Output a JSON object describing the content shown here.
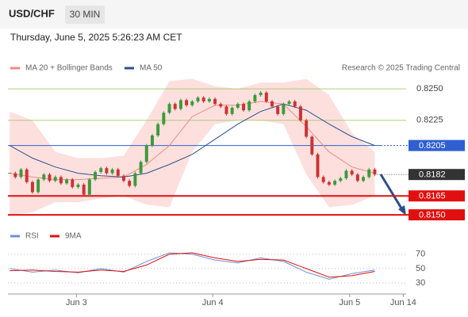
{
  "header": {
    "symbol": "USD/CHF",
    "interval": "30 MIN",
    "timestamp": "Thursday, June 5, 2025 5:26:23 AM CET"
  },
  "chart_data": [
    {
      "type": "candlestick",
      "source": "Research © 2025 Trading Central",
      "up_color": "#3c9a3c",
      "down_color": "#cc3333",
      "closes": [
        0.8183,
        0.818,
        0.8186,
        0.8176,
        0.8168,
        0.8178,
        0.8182,
        0.8177,
        0.818,
        0.8175,
        0.8178,
        0.8172,
        0.8174,
        0.8166,
        0.8178,
        0.8184,
        0.8187,
        0.8183,
        0.8186,
        0.8181,
        0.8177,
        0.8173,
        0.8183,
        0.8192,
        0.8205,
        0.8213,
        0.8222,
        0.8231,
        0.8238,
        0.8234,
        0.8241,
        0.8237,
        0.824,
        0.8243,
        0.824,
        0.8242,
        0.8238,
        0.8236,
        0.823,
        0.8235,
        0.8238,
        0.8233,
        0.824,
        0.8245,
        0.8247,
        0.824,
        0.8236,
        0.823,
        0.8238,
        0.824,
        0.8236,
        0.8225,
        0.8212,
        0.8198,
        0.818,
        0.8176,
        0.8174,
        0.8177,
        0.8179,
        0.8185,
        0.8182,
        0.8177,
        0.818,
        0.8186,
        0.8182
      ],
      "x": [
        0,
        4,
        8,
        12,
        16,
        20,
        24,
        28,
        32,
        36,
        40,
        44,
        48,
        52,
        56,
        60,
        64
      ],
      "series": [
        {
          "name": "MA 20 + Bollinger Bands",
          "color": "#f08a80",
          "band_color": "#fde0de",
          "values": [
            0.8183,
            0.818,
            0.8178,
            0.8178,
            0.8179,
            0.818,
            0.819,
            0.8205,
            0.8228,
            0.8237,
            0.8237,
            0.824,
            0.8238,
            0.822,
            0.82,
            0.8188,
            0.8183
          ],
          "upper": [
            0.8232,
            0.8225,
            0.82,
            0.8195,
            0.8195,
            0.8197,
            0.8225,
            0.8256,
            0.8258,
            0.8252,
            0.825,
            0.8255,
            0.8255,
            0.8258,
            0.8245,
            0.8215,
            0.82
          ],
          "lower": [
            0.815,
            0.8152,
            0.816,
            0.816,
            0.8163,
            0.8165,
            0.8158,
            0.8156,
            0.82,
            0.8222,
            0.8225,
            0.8225,
            0.8222,
            0.8182,
            0.8156,
            0.8158,
            0.8165
          ]
        },
        {
          "name": "MA 50",
          "color": "#2c4f8c",
          "values": [
            0.8205,
            0.8195,
            0.8188,
            0.8183,
            0.8181,
            0.818,
            0.8183,
            0.819,
            0.8198,
            0.821,
            0.8222,
            0.8232,
            0.8238,
            0.8233,
            0.8222,
            0.8212,
            0.8205
          ]
        }
      ],
      "levels": [
        {
          "value": 0.825,
          "label": "0.8250",
          "color": "#8dc04a",
          "weight": "light",
          "box": false
        },
        {
          "value": 0.8225,
          "color": "#8dc04a",
          "weight": "light",
          "box": false
        },
        {
          "value": 0.8205,
          "color": "#2f5fd0",
          "weight": "normal",
          "box": true
        },
        {
          "value": 0.8165,
          "color": "#e01010",
          "weight": "bold",
          "box": true
        },
        {
          "value": 0.815,
          "label": "0.8150",
          "color": "#e01010",
          "weight": "bold",
          "box": true
        }
      ],
      "last_color": "#333333",
      "xlim": [
        -0.3,
        69.5
      ],
      "ylim": [
        0.8142,
        0.8262
      ]
    },
    {
      "type": "line",
      "x": [
        0,
        4,
        8,
        12,
        16,
        20,
        24,
        28,
        32,
        36,
        40,
        44,
        48,
        52,
        56,
        60,
        64
      ],
      "series": [
        {
          "name": "RSI",
          "color": "#6b8fd6",
          "values": [
            50,
            45,
            48,
            44,
            50,
            45,
            60,
            72,
            70,
            62,
            58,
            65,
            60,
            45,
            35,
            43,
            48
          ]
        },
        {
          "name": "9MA",
          "color": "#e01010",
          "values": [
            47,
            48,
            46,
            45,
            48,
            46,
            55,
            70,
            72,
            65,
            60,
            63,
            62,
            50,
            38,
            40,
            46
          ]
        }
      ],
      "ylim": [
        15,
        82
      ],
      "yticks": [
        30,
        50,
        70
      ],
      "xlim": [
        -0.3,
        69.5
      ],
      "xticks": [
        {
          "value": 11.7,
          "label": "Jun 3"
        },
        {
          "value": 35.6,
          "label": "Jun 4"
        },
        {
          "value": 59.6,
          "label": "Jun 5"
        },
        {
          "value": 69,
          "label": "Jun 14"
        }
      ]
    }
  ]
}
